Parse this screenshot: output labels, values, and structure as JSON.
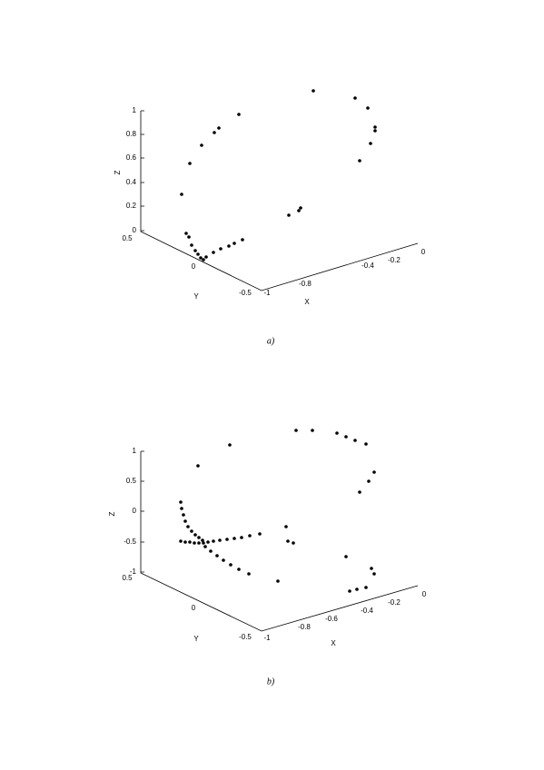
{
  "figures": [
    {
      "z_label": "Z",
      "y_label": "Y",
      "x_label": "X",
      "z_ticks": [
        "1",
        "0.8",
        "0.6",
        "0.4",
        "0.2",
        "0"
      ],
      "y_ticks": [
        "0.5",
        "0",
        "-0.5"
      ],
      "x_ticks": [
        "-1",
        "-0.8",
        "-0.4",
        "-0.2",
        "0"
      ],
      "caption": "a)"
    },
    {
      "z_label": "Z",
      "y_label": "Y",
      "x_label": "X",
      "z_ticks": [
        "1",
        "0.5",
        "0",
        "-0.5",
        "-1"
      ],
      "y_ticks": [
        "0.5",
        "0",
        "-0.5"
      ],
      "x_ticks": [
        "-1",
        "-0.8",
        "-0.6",
        "-0.4",
        "-0.2",
        "0"
      ],
      "caption": "b)"
    }
  ]
}
